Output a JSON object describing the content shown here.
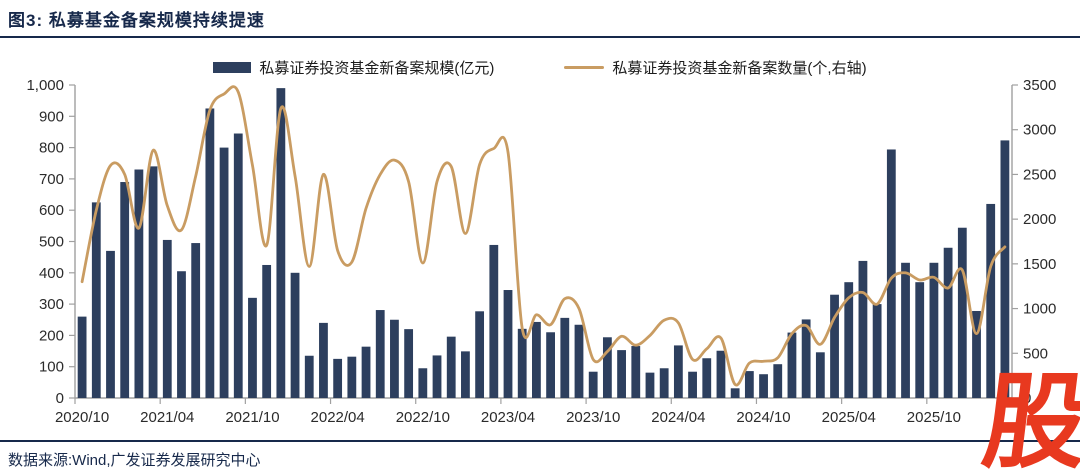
{
  "figure": {
    "title": "图3: 私募基金备案规模持续提速"
  },
  "legend": {
    "bar_label": "私募证券投资基金新备案规模(亿元)",
    "line_label": "私募证券投资基金新备案数量(个,右轴)"
  },
  "footer": {
    "source": "数据来源:Wind,广发证券发展研究中心"
  },
  "watermark": {
    "text": "股",
    "color": "#e8391f"
  },
  "colors": {
    "bar": "#2d3f5e",
    "line": "#c99c62",
    "axis": "#a0a0a0",
    "tick_text": "#2b2b2b",
    "title_navy": "#17294b"
  },
  "chart_data": {
    "type": "bar+line combo",
    "title": "私募基金备案规模持续提速",
    "x": [
      "2020/10",
      "2020/11",
      "2020/12",
      "2021/01",
      "2021/02",
      "2021/03",
      "2021/04",
      "2021/05",
      "2021/06",
      "2021/07",
      "2021/08",
      "2021/09",
      "2021/10",
      "2021/11",
      "2021/12",
      "2022/01",
      "2022/02",
      "2022/03",
      "2022/04",
      "2022/05",
      "2022/06",
      "2022/07",
      "2022/08",
      "2022/09",
      "2022/10",
      "2022/11",
      "2022/12",
      "2023/01",
      "2023/02",
      "2023/03",
      "2023/04",
      "2023/05",
      "2023/06",
      "2023/07",
      "2023/08",
      "2023/09",
      "2023/10",
      "2023/11",
      "2023/12",
      "2024/01",
      "2024/02",
      "2024/03",
      "2024/04",
      "2024/05",
      "2024/06",
      "2024/07",
      "2024/08",
      "2024/09",
      "2024/10",
      "2024/11",
      "2024/12",
      "2025/01",
      "2025/02",
      "2025/03",
      "2025/04",
      "2025/05",
      "2025/06",
      "2025/07",
      "2025/08",
      "2025/09",
      "2025/10",
      "2025/11",
      "2025/12",
      "2026/01",
      "2026/02",
      "2026/03"
    ],
    "series": [
      {
        "name": "私募证券投资基金新备案规模(亿元)",
        "type": "bar",
        "axis": "left",
        "values": [
          260,
          625,
          470,
          690,
          730,
          740,
          505,
          405,
          495,
          925,
          800,
          845,
          320,
          425,
          990,
          400,
          135,
          240,
          125,
          132,
          164,
          281,
          250,
          220,
          95,
          136,
          196,
          149,
          277,
          489,
          345,
          221,
          243,
          210,
          256,
          234,
          84,
          194,
          153,
          166,
          81,
          95,
          168,
          84,
          127,
          151,
          31,
          86,
          76,
          108,
          209,
          251,
          146,
          330,
          370,
          438,
          300,
          794,
          432,
          370,
          432,
          480,
          544,
          278,
          620,
          823
        ]
      },
      {
        "name": "私募证券投资基金新备案数量(个,右轴)",
        "type": "line",
        "axis": "right",
        "values": [
          1300,
          2100,
          2600,
          2500,
          1900,
          2770,
          2150,
          1880,
          2480,
          3220,
          3400,
          3420,
          2600,
          1710,
          3240,
          2480,
          1470,
          2500,
          1650,
          1520,
          2120,
          2500,
          2660,
          2420,
          1510,
          2420,
          2590,
          1840,
          2610,
          2790,
          2750,
          780,
          930,
          820,
          1110,
          1000,
          430,
          520,
          690,
          590,
          700,
          870,
          840,
          430,
          550,
          670,
          150,
          390,
          410,
          450,
          720,
          810,
          600,
          900,
          1120,
          1180,
          1050,
          1340,
          1400,
          1320,
          1350,
          1230,
          1430,
          720,
          1470,
          1690
        ]
      }
    ],
    "y_left": {
      "min": 0,
      "max": 1000,
      "tick_values": [
        0,
        100,
        200,
        300,
        400,
        500,
        600,
        700,
        800,
        900,
        1000
      ],
      "tick_labels": [
        "0",
        "100",
        "200",
        "300",
        "400",
        "500",
        "600",
        "700",
        "800",
        "900",
        "1,000"
      ]
    },
    "y_right": {
      "min": 0,
      "max": 3500,
      "tick_values": [
        0,
        500,
        1000,
        1500,
        2000,
        2500,
        3000,
        3500
      ],
      "tick_labels": [
        "0",
        "500",
        "1000",
        "1500",
        "2000",
        "2500",
        "3000",
        "3500"
      ]
    },
    "x_axis": {
      "label_interval_months": 6,
      "tick_labels": [
        "2020/10",
        "2021/04",
        "2021/10",
        "2022/04",
        "2022/10",
        "2023/04",
        "2023/10",
        "2024/04",
        "2024/10",
        "2025/04",
        "2025/10"
      ]
    },
    "grid": "off",
    "legend_position": "top"
  }
}
